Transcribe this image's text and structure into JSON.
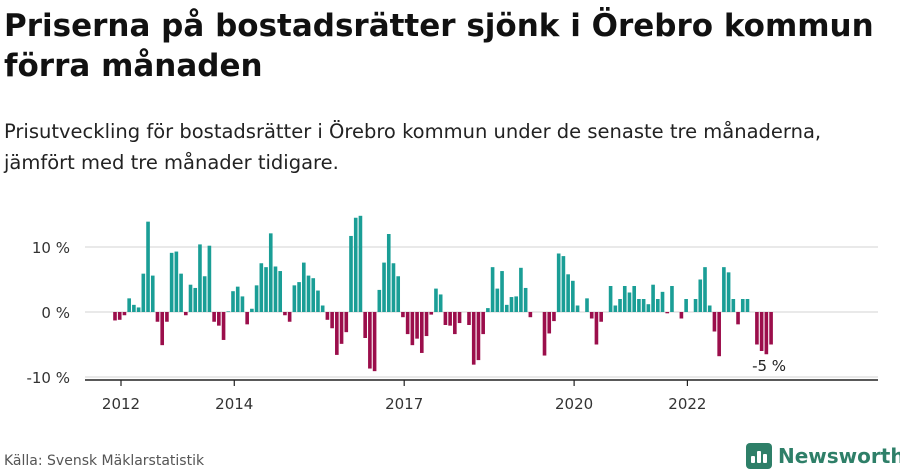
{
  "title": "Priserna på bostadsrätter sjönk i Örebro kommun förra månaden",
  "subtitle": "Prisutveckling för bostadsrätter i Örebro kommun under de senaste tre månaderna, jämfört med tre månader tidigare.",
  "source": "Källa: Svensk Mäklarstatistik",
  "brand": {
    "name": "Newsworthy",
    "icon": "newsworthy-logo-icon",
    "color": "#2e7f68"
  },
  "colors": {
    "positive": "#1a9e96",
    "negative": "#9b0e4b"
  },
  "chart_data": {
    "type": "bar",
    "title": "Priserna på bostadsrätter sjönk i Örebro kommun förra månaden",
    "xlabel": "",
    "ylabel": "",
    "y_unit": "%",
    "ylim": [
      -10,
      15
    ],
    "grid": true,
    "yticks": [
      {
        "value": 10,
        "label": "10 %"
      },
      {
        "value": 0,
        "label": "0 %"
      },
      {
        "value": -10,
        "label": "-10 %"
      }
    ],
    "xticks": [
      {
        "index": 0,
        "label": "2012"
      },
      {
        "index": 24,
        "label": "2014"
      },
      {
        "index": 60,
        "label": "2017"
      },
      {
        "index": 96,
        "label": "2020"
      },
      {
        "index": 120,
        "label": "2022"
      }
    ],
    "start": "2012-01",
    "frequency": "monthly",
    "values": [
      -1.3,
      -1.2,
      -0.5,
      2.1,
      1.1,
      0.7,
      5.9,
      13.9,
      5.6,
      -1.5,
      -5.1,
      -1.5,
      9.1,
      9.3,
      5.9,
      -0.5,
      4.2,
      3.7,
      10.4,
      5.5,
      10.2,
      -1.5,
      -2.1,
      -4.3,
      0.1,
      3.2,
      3.9,
      2.4,
      -1.9,
      0.5,
      4.1,
      7.5,
      6.9,
      12.1,
      7.0,
      6.3,
      -0.5,
      -1.5,
      4.1,
      4.6,
      7.6,
      5.6,
      5.2,
      3.3,
      1.0,
      -1.2,
      -2.5,
      -6.6,
      -4.9,
      -3.1,
      11.7,
      14.5,
      14.8,
      -4.0,
      -8.7,
      -9.1,
      3.4,
      7.6,
      12.0,
      7.5,
      5.5,
      -0.8,
      -3.4,
      -5.1,
      -4.1,
      -6.3,
      -3.7,
      -0.4,
      3.6,
      2.7,
      -2.0,
      -2.1,
      -3.4,
      -1.7,
      0.0,
      -2.0,
      -8.1,
      -7.4,
      -3.4,
      0.6,
      6.9,
      3.6,
      6.3,
      1.1,
      2.3,
      2.4,
      6.8,
      3.7,
      -0.8,
      0.0,
      0.0,
      -6.7,
      -3.3,
      -1.4,
      9.0,
      8.6,
      5.8,
      4.8,
      1.0,
      0.0,
      2.1,
      -1.0,
      -5.0,
      -1.5,
      0.0,
      4.0,
      1.0,
      2.0,
      4.0,
      3.0,
      4.0,
      2.0,
      2.0,
      1.2,
      4.2,
      2.0,
      3.1,
      -0.2,
      4.0,
      0.0,
      -1.0,
      2.0,
      0.0,
      2.0,
      5.0,
      6.9,
      1.0,
      -3.0,
      -6.8,
      6.9,
      6.1,
      2.0,
      -1.9,
      2.0,
      2.0,
      0.0,
      -5.0,
      -6.0,
      -6.5,
      -5.0
    ],
    "annotations": [
      {
        "index": 139,
        "text": "-5 %"
      }
    ]
  }
}
